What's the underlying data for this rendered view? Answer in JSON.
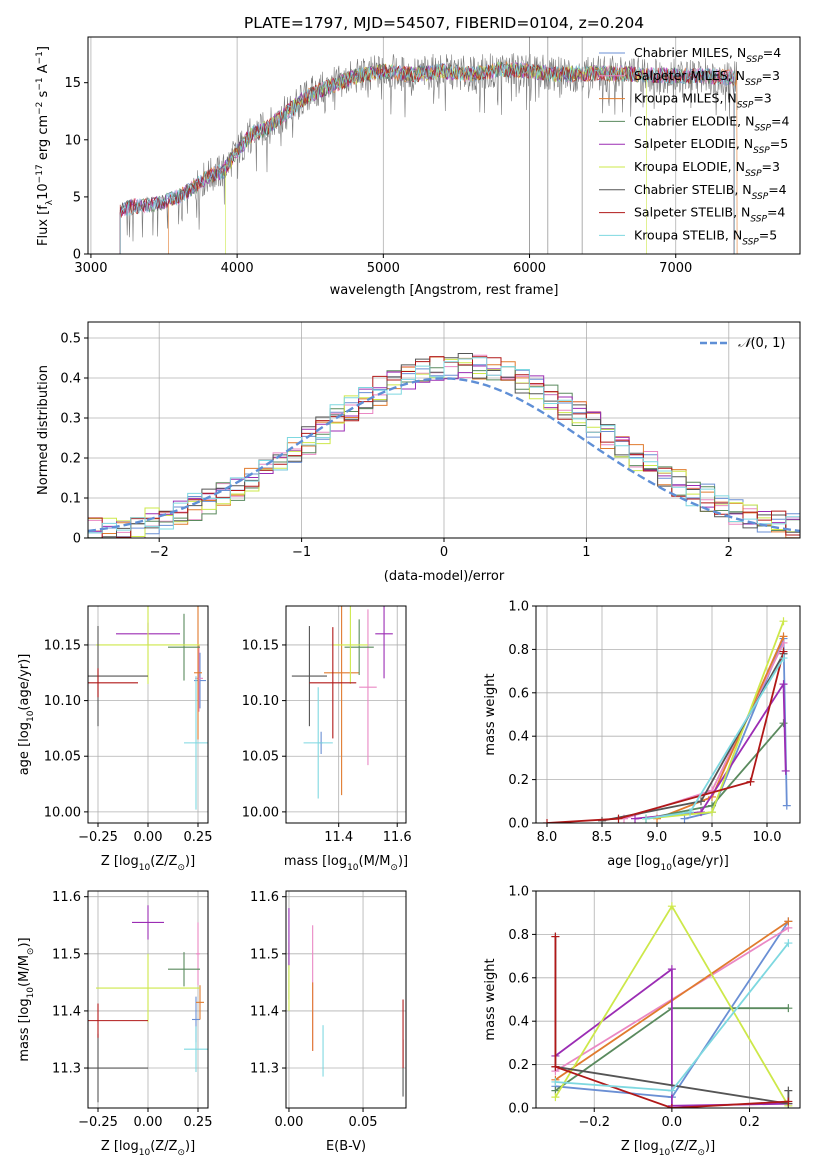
{
  "colors": {
    "chabrier_miles": "#6a8fd4",
    "salpeter_miles": "#ea88c4",
    "kroupa_miles": "#e07b2e",
    "chabrier_elodie": "#5a8a5e",
    "salpeter_elodie": "#9b2db4",
    "kroupa_elodie": "#cde84a",
    "chabrier_stelib": "#555555",
    "salpeter_stelib": "#b01818",
    "kroupa_stelib": "#7ed8e0",
    "gaussian": "#5f8fd6",
    "grid": "#b0b0b0"
  },
  "chart_data": [
    {
      "id": "spectrum",
      "type": "line",
      "title": "PLATE=1797, MJD=54507, FIBERID=0104, z=0.204",
      "xlabel": "wavelength [Angstrom, rest frame]",
      "ylabel": "Flux [f$_\\lambda$10$^{-17}$ erg cm$^{-2}$ s$^{-1}$ A$^{-1}$]",
      "xlim": [
        2980,
        7850
      ],
      "ylim": [
        0,
        19
      ],
      "xticks": [
        3000,
        4000,
        5000,
        6000,
        7000
      ],
      "yticks": [
        0,
        5,
        10,
        15
      ],
      "grid": "x-only",
      "legend_position": "right",
      "legend": [
        {
          "label": "Chabrier MILES, N",
          "sub": "SSP",
          "suffix": "=4",
          "color": "chabrier_miles"
        },
        {
          "label": "Salpeter MILES, N",
          "sub": "SSP",
          "suffix": "=3",
          "color": "salpeter_miles"
        },
        {
          "label": "Kroupa MILES, N",
          "sub": "SSP",
          "suffix": "=3",
          "color": "kroupa_miles"
        },
        {
          "label": "Chabrier ELODIE, N",
          "sub": "SSP",
          "suffix": "=4",
          "color": "chabrier_elodie"
        },
        {
          "label": "Salpeter ELODIE, N",
          "sub": "SSP",
          "suffix": "=5",
          "color": "salpeter_elodie"
        },
        {
          "label": "Kroupa ELODIE, N",
          "sub": "SSP",
          "suffix": "=3",
          "color": "kroupa_elodie"
        },
        {
          "label": "Chabrier STELIB, N",
          "sub": "SSP",
          "suffix": "=4",
          "color": "chabrier_stelib"
        },
        {
          "label": "Salpeter STELIB, N",
          "sub": "SSP",
          "suffix": "=4",
          "color": "salpeter_stelib"
        },
        {
          "label": "Kroupa STELIB, N",
          "sub": "SSP",
          "suffix": "=5",
          "color": "kroupa_stelib"
        }
      ],
      "continuum": {
        "x": [
          3200,
          3300,
          3400,
          3500,
          3600,
          3700,
          3800,
          3900,
          4000,
          4100,
          4200,
          4300,
          4400,
          4500,
          4600,
          4800,
          5000,
          5200,
          5400,
          5600,
          5800,
          6000,
          6200,
          6400,
          6600,
          6800,
          7000,
          7200,
          7400
        ],
        "y": [
          3.8,
          4.2,
          4.3,
          4.6,
          5.0,
          5.8,
          6.8,
          7.2,
          9.0,
          10.5,
          11.0,
          12.0,
          13.0,
          14.0,
          14.5,
          15.5,
          16.0,
          15.7,
          16.0,
          15.7,
          16.2,
          16.0,
          15.7,
          15.8,
          15.8,
          15.7,
          15.6,
          15.6,
          15.4
        ]
      },
      "model_ranges": [
        [
          3200,
          7400
        ],
        [
          3200,
          7400
        ],
        [
          3530,
          7420
        ],
        [
          3200,
          7400
        ],
        [
          3200,
          7400
        ],
        [
          3920,
          6800
        ],
        [
          3200,
          7400
        ],
        [
          3200,
          7400
        ],
        [
          3200,
          7400
        ]
      ]
    },
    {
      "id": "residuals",
      "type": "histogram",
      "xlabel": "(data-model)/error",
      "ylabel": "Normed distribution",
      "xlim": [
        -2.5,
        2.5
      ],
      "ylim": [
        0,
        0.54
      ],
      "xticks": [
        -2,
        -1,
        0,
        1,
        2
      ],
      "yticks": [
        0.0,
        0.1,
        0.2,
        0.3,
        0.4,
        0.5
      ],
      "grid": true,
      "bin_width": 0.1,
      "legend": [
        {
          "label": "$\\mathcal{N}(0,1)$",
          "color": "gaussian",
          "style": "dashed"
        }
      ]
    },
    {
      "id": "age_vs_Z",
      "type": "scatter",
      "xlabel": "Z [log$_{10}$(Z/Z$_\\odot$)]",
      "ylabel": "age  [log$_{10}$(age/yr)]",
      "xlim": [
        -0.3,
        0.3
      ],
      "ylim": [
        9.99,
        10.185
      ],
      "xticks": [
        -0.25,
        0.0,
        0.25
      ],
      "xticklabels": [
        "−0.25",
        "0.00",
        "0.25"
      ],
      "yticks": [
        10.0,
        10.05,
        10.1,
        10.15
      ],
      "yticklabels": [
        "10.00",
        "10.05",
        "10.10",
        "10.15"
      ],
      "grid": true,
      "points": [
        {
          "series": "chabrier_miles",
          "x": 0.26,
          "xerr": 0.03,
          "y": 10.118,
          "yerr": 0.025
        },
        {
          "series": "salpeter_miles",
          "x": 0.255,
          "xerr": 0.02,
          "y": 10.12,
          "yerr": 0.03
        },
        {
          "series": "kroupa_miles",
          "x": 0.25,
          "xerr": 0.02,
          "y": 10.125,
          "yerr": 0.06
        },
        {
          "series": "chabrier_elodie",
          "x": 0.18,
          "xerr": 0.08,
          "y": 10.148,
          "yerr": 0.03
        },
        {
          "series": "salpeter_elodie",
          "x": 0.0,
          "xerr": 0.16,
          "y": 10.16,
          "yerr": 0.01
        },
        {
          "series": "kroupa_elodie",
          "x": 0.0,
          "xerr": 0.26,
          "y": 10.15,
          "yerr": 0.035
        },
        {
          "series": "chabrier_stelib",
          "x": -0.25,
          "xerr": 0.25,
          "y": 10.122,
          "yerr": 0.045
        },
        {
          "series": "salpeter_stelib",
          "x": -0.25,
          "xerr": 0.2,
          "y": 10.116,
          "yerr": 0.013
        },
        {
          "series": "kroupa_stelib",
          "x": 0.24,
          "xerr": 0.06,
          "y": 10.062,
          "yerr": 0.06
        }
      ]
    },
    {
      "id": "age_vs_mass",
      "type": "scatter",
      "xlabel": "mass [log$_{10}$(M/M$_\\odot$)]",
      "xlim": [
        11.22,
        11.63
      ],
      "ylim": [
        9.99,
        10.185
      ],
      "xticks": [
        11.4,
        11.6
      ],
      "xticklabels": [
        "11.4",
        "11.6"
      ],
      "yticks": [
        10.0,
        10.05,
        10.1,
        10.15
      ],
      "yticklabels": [
        "10.00",
        "10.05",
        "10.10",
        "10.15"
      ],
      "grid": true,
      "points": [
        {
          "series": "chabrier_miles",
          "x": 11.34,
          "xerr": 0.005,
          "y": 10.062,
          "yerr": 0.01
        },
        {
          "series": "salpeter_miles",
          "x": 11.5,
          "xerr": 0.03,
          "y": 10.112,
          "yerr": 0.07
        },
        {
          "series": "kroupa_miles",
          "x": 11.41,
          "xerr": 0.06,
          "y": 10.125,
          "yerr": 0.11
        },
        {
          "series": "chabrier_elodie",
          "x": 11.47,
          "xerr": 0.05,
          "y": 10.148,
          "yerr": 0.025
        },
        {
          "series": "salpeter_elodie",
          "x": 11.555,
          "xerr": 0.03,
          "y": 10.16,
          "yerr": 0.04
        },
        {
          "series": "kroupa_elodie",
          "x": 11.44,
          "xerr": 0.06,
          "y": 10.15,
          "yerr": 0.035
        },
        {
          "series": "chabrier_stelib",
          "x": 11.3,
          "xerr": 0.06,
          "y": 10.122,
          "yerr": 0.045
        },
        {
          "series": "salpeter_stelib",
          "x": 11.38,
          "xerr": 0.08,
          "y": 10.116,
          "yerr": 0.05
        },
        {
          "series": "kroupa_stelib",
          "x": 11.33,
          "xerr": 0.05,
          "y": 10.062,
          "yerr": 0.05
        }
      ]
    },
    {
      "id": "weight_vs_age",
      "type": "line",
      "xlabel": "age  [log$_{10}$(age/yr)]",
      "ylabel": "mass weight",
      "xlim": [
        7.9,
        10.3
      ],
      "ylim": [
        0,
        1.0
      ],
      "xticks": [
        8.0,
        8.5,
        9.0,
        9.5,
        10.0
      ],
      "xticklabels": [
        "8.0",
        "8.5",
        "9.0",
        "9.5",
        "10.0"
      ],
      "yticks": [
        0.0,
        0.2,
        0.4,
        0.6,
        0.8,
        1.0
      ],
      "yticklabels": [
        "0.0",
        "0.2",
        "0.4",
        "0.6",
        "0.8",
        "1.0"
      ],
      "grid": true,
      "series": [
        {
          "name": "chabrier_miles",
          "x": [
            9.25,
            9.5,
            10.15,
            10.18
          ],
          "y": [
            0.02,
            0.05,
            0.85,
            0.08
          ]
        },
        {
          "name": "salpeter_miles",
          "x": [
            8.7,
            9.5,
            10.15
          ],
          "y": [
            0.02,
            0.15,
            0.83
          ]
        },
        {
          "name": "kroupa_miles",
          "x": [
            9.0,
            9.5,
            10.15
          ],
          "y": [
            0.02,
            0.12,
            0.86
          ]
        },
        {
          "name": "chabrier_elodie",
          "x": [
            8.9,
            9.5,
            10.15
          ],
          "y": [
            0.02,
            0.08,
            0.46
          ]
        },
        {
          "name": "salpeter_elodie",
          "x": [
            8.8,
            9.4,
            10.15,
            10.17
          ],
          "y": [
            0.02,
            0.05,
            0.64,
            0.24
          ]
        },
        {
          "name": "kroupa_elodie",
          "x": [
            8.9,
            9.5,
            10.15
          ],
          "y": [
            0.02,
            0.05,
            0.93
          ]
        },
        {
          "name": "chabrier_stelib",
          "x": [
            8.5,
            9.4,
            10.15
          ],
          "y": [
            0.01,
            0.1,
            0.78
          ]
        },
        {
          "name": "salpeter_stelib",
          "x": [
            8.0,
            8.65,
            9.85,
            10.15
          ],
          "y": [
            0.0,
            0.02,
            0.19,
            0.79
          ]
        },
        {
          "name": "kroupa_stelib",
          "x": [
            8.9,
            9.3,
            10.15
          ],
          "y": [
            0.02,
            0.05,
            0.76
          ]
        }
      ]
    },
    {
      "id": "mass_vs_Z",
      "type": "scatter",
      "xlabel": "Z [log$_{10}$(Z/Z$_\\odot$)]",
      "ylabel": "mass [log$_{10}$(M/M$_\\odot$)]",
      "xlim": [
        -0.3,
        0.3
      ],
      "ylim": [
        11.23,
        11.61
      ],
      "xticks": [
        -0.25,
        0.0,
        0.25
      ],
      "xticklabels": [
        "−0.25",
        "0.00",
        "0.25"
      ],
      "yticks": [
        11.3,
        11.4,
        11.5,
        11.6
      ],
      "yticklabels": [
        "11.3",
        "11.4",
        "11.5",
        "11.6"
      ],
      "grid": true,
      "points": [
        {
          "series": "chabrier_miles",
          "x": 0.24,
          "xerr": 0.02,
          "y": 11.385,
          "yerr": 0.04
        },
        {
          "series": "salpeter_miles",
          "x": 0.25,
          "xerr": 0.01,
          "y": 11.5,
          "yerr": 0.055
        },
        {
          "series": "kroupa_miles",
          "x": 0.26,
          "xerr": 0.02,
          "y": 11.415,
          "yerr": 0.03
        },
        {
          "series": "chabrier_elodie",
          "x": 0.18,
          "xerr": 0.08,
          "y": 11.473,
          "yerr": 0.03
        },
        {
          "series": "salpeter_elodie",
          "x": 0.0,
          "xerr": 0.08,
          "y": 11.555,
          "yerr": 0.03
        },
        {
          "series": "kroupa_elodie",
          "x": 0.0,
          "xerr": 0.26,
          "y": 11.44,
          "yerr": 0.06
        },
        {
          "series": "chabrier_stelib",
          "x": -0.25,
          "xerr": 0.25,
          "y": 11.3,
          "yerr": 0.06
        },
        {
          "series": "salpeter_stelib",
          "x": -0.25,
          "xerr": 0.25,
          "y": 11.383,
          "yerr": 0.03
        },
        {
          "series": "kroupa_stelib",
          "x": 0.24,
          "xerr": 0.06,
          "y": 11.333,
          "yerr": 0.04
        }
      ]
    },
    {
      "id": "mass_vs_ebv",
      "type": "scatter",
      "xlabel": "E(B-V)",
      "xlim": [
        -0.002,
        0.079
      ],
      "ylim": [
        11.23,
        11.61
      ],
      "xticks": [
        0.0,
        0.05
      ],
      "xticklabels": [
        "0.00",
        "0.05"
      ],
      "yticks": [
        11.3,
        11.4,
        11.5,
        11.6
      ],
      "yticklabels": [
        "11.3",
        "11.4",
        "11.5",
        "11.6"
      ],
      "grid": true,
      "points": [
        {
          "series": "chabrier_miles",
          "x": 0.0,
          "y": 11.55,
          "yerr": 0.03
        },
        {
          "series": "salpeter_miles",
          "x": 0.016,
          "y": 11.44,
          "yerr": 0.11
        },
        {
          "series": "kroupa_miles",
          "x": 0.016,
          "y": 11.39,
          "yerr": 0.06
        },
        {
          "series": "chabrier_elodie",
          "x": 0.0,
          "y": 11.47,
          "yerr": 0.05
        },
        {
          "series": "salpeter_elodie",
          "x": 0.0,
          "y": 11.53,
          "yerr": 0.05
        },
        {
          "series": "kroupa_elodie",
          "x": 0.0,
          "y": 11.44,
          "yerr": 0.04
        },
        {
          "series": "chabrier_stelib",
          "x": 0.077,
          "y": 11.3,
          "yerr": 0.05
        },
        {
          "series": "salpeter_stelib",
          "x": 0.077,
          "y": 11.36,
          "yerr": 0.06
        },
        {
          "series": "kroupa_stelib",
          "x": 0.023,
          "y": 11.33,
          "yerr": 0.045
        }
      ]
    },
    {
      "id": "weight_vs_Z",
      "type": "line",
      "xlabel": "Z [log$_{10}$(Z/Z$_\\odot$)]",
      "ylabel": "mass weight",
      "xlim": [
        -0.35,
        0.33
      ],
      "ylim": [
        0,
        1.0
      ],
      "xticks": [
        -0.2,
        0.0,
        0.2
      ],
      "xticklabels": [
        "−0.2",
        "0.0",
        "0.2"
      ],
      "yticks": [
        0.0,
        0.2,
        0.4,
        0.6,
        0.8,
        1.0
      ],
      "yticklabels": [
        "0.0",
        "0.2",
        "0.4",
        "0.6",
        "0.8",
        "1.0"
      ],
      "grid": true,
      "series": [
        {
          "name": "chabrier_miles",
          "x": [
            -0.3,
            0.0,
            0.3
          ],
          "y": [
            0.1,
            0.05,
            0.86
          ]
        },
        {
          "name": "salpeter_miles",
          "x": [
            -0.3,
            0.3
          ],
          "y": [
            0.17,
            0.83
          ]
        },
        {
          "name": "kroupa_miles",
          "x": [
            -0.3,
            0.3
          ],
          "y": [
            0.13,
            0.86
          ]
        },
        {
          "name": "chabrier_elodie",
          "x": [
            -0.3,
            0.0,
            0.3
          ],
          "y": [
            0.08,
            0.46,
            0.46
          ]
        },
        {
          "name": "salpeter_elodie",
          "x": [
            -0.3,
            0.0,
            0.0,
            0.3
          ],
          "y": [
            0.24,
            0.64,
            0.01,
            0.02
          ]
        },
        {
          "name": "kroupa_elodie",
          "x": [
            -0.3,
            0.0,
            0.3
          ],
          "y": [
            0.05,
            0.93,
            0.01
          ]
        },
        {
          "name": "chabrier_stelib",
          "x": [
            -0.3,
            -0.3,
            0.3,
            0.3
          ],
          "y": [
            0.79,
            0.19,
            0.02,
            0.08
          ]
        },
        {
          "name": "salpeter_stelib",
          "x": [
            -0.3,
            -0.3,
            0.0,
            0.3
          ],
          "y": [
            0.79,
            0.19,
            0.0,
            0.03
          ]
        },
        {
          "name": "kroupa_stelib",
          "x": [
            -0.3,
            0.0,
            0.3
          ],
          "y": [
            0.12,
            0.08,
            0.76
          ]
        }
      ]
    }
  ]
}
